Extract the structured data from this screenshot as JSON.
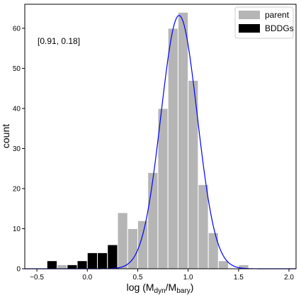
{
  "chart_data": {
    "type": "bar",
    "title": "",
    "xlabel": {
      "prefix": "log (M",
      "sub1": "dyn",
      "mid": "/M",
      "sub2": "bary",
      "suffix": ")"
    },
    "ylabel": "count",
    "xlim": [
      -0.62,
      2.07
    ],
    "ylim": [
      0,
      66
    ],
    "x_ticks": [
      -0.5,
      0.0,
      0.5,
      1.0,
      1.5,
      2.0
    ],
    "x_tick_labels": [
      "−0.5",
      "0.0",
      "0.5",
      "1.0",
      "1.5",
      "2.0"
    ],
    "y_ticks": [
      0,
      10,
      20,
      30,
      40,
      50,
      60
    ],
    "y_tick_labels": [
      "0",
      "10",
      "20",
      "30",
      "40",
      "50",
      "60"
    ],
    "grid": false,
    "legend_position": "top-right",
    "annotation": "[0.91, 0.18]",
    "bin_width": 0.1,
    "series": [
      {
        "name": "parent",
        "color": "#b5b5b5",
        "bin_left_edges": [
          -0.4,
          -0.3,
          -0.2,
          -0.1,
          0.0,
          0.1,
          0.2,
          0.3,
          0.4,
          0.5,
          0.6,
          0.7,
          0.8,
          0.9,
          1.0,
          1.1,
          1.2,
          1.3,
          1.4,
          1.5
        ],
        "values": [
          1,
          1,
          1,
          1,
          4,
          4,
          6,
          14,
          10,
          12,
          24,
          40,
          60,
          64,
          47,
          21,
          9,
          2,
          0,
          1
        ]
      },
      {
        "name": "BDDGs",
        "color": "#000000",
        "bin_left_edges": [
          -0.4,
          -0.3,
          -0.2,
          -0.1,
          0.0,
          0.1,
          0.2
        ],
        "values": [
          2,
          0,
          1,
          2,
          4,
          4,
          6
        ]
      },
      {
        "type": "line",
        "color": "#0000ff",
        "function": "gaussian",
        "mean": 0.91,
        "sigma": 0.18,
        "amplitude": 63.2
      }
    ]
  }
}
